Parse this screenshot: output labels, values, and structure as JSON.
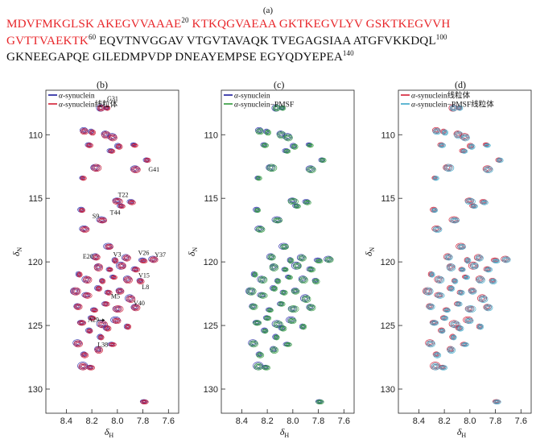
{
  "figure_label_a": "(a)",
  "sequence": {
    "lines": [
      [
        {
          "text": "MDVFMKGLSK AKEGVVAAAE",
          "color": "red"
        },
        {
          "text": "20",
          "sup": true,
          "color": "black"
        },
        {
          "text": " KTKQGVAEAA GKTKEGVLYV GSKTKEGVVH",
          "color": "red"
        }
      ],
      [
        {
          "text": "GVTTVAEKTK",
          "color": "red"
        },
        {
          "text": "60",
          "sup": true,
          "color": "black"
        },
        {
          "text": " EQVTNVGGAV VTGVTAVAQK TVEGAGSIAA ATGFVKKDQL",
          "color": "black"
        },
        {
          "text": "100",
          "sup": true,
          "color": "black"
        }
      ],
      [
        {
          "text": "GKNEEGAPQE GILEDMPVDP DNEAYEMPSE EGYQDYEPEA",
          "color": "black"
        },
        {
          "text": "140",
          "sup": true,
          "color": "black"
        }
      ]
    ]
  },
  "panels": [
    {
      "label": "(b)",
      "legend": [
        {
          "prefix": "α",
          "text": "-synuclein",
          "color": "#1c1c9c"
        },
        {
          "prefix": "α",
          "text": "-synuclein线粒体",
          "color": "#d41e33"
        }
      ],
      "annotations": [
        "G31",
        "G41",
        "T22",
        "S9",
        "T44",
        "E20",
        "V3",
        "V26",
        "Y37",
        "V15",
        "L8",
        "M5",
        "V40",
        "A29",
        "L38"
      ],
      "ylabel": "δN",
      "xlabel": "δH"
    },
    {
      "label": "(c)",
      "legend": [
        {
          "prefix": "α",
          "text": "-synuclein",
          "color": "#1c1c9c"
        },
        {
          "prefix": "α",
          "text": "-synuclein−PMSF",
          "color": "#2e9a3a"
        }
      ],
      "annotations": [],
      "ylabel": "δN",
      "xlabel": "δH"
    },
    {
      "label": "(d)",
      "legend": [
        {
          "prefix": "α",
          "text": "-synuclein线粒体",
          "color": "#d41e33"
        },
        {
          "prefix": "α",
          "text": "-synuclein−PMSF线粒体",
          "color": "#3aa6c8"
        }
      ],
      "annotations": [],
      "ylabel": "δN",
      "xlabel": "δH"
    }
  ],
  "chart_data": {
    "type": "scatter",
    "subtype": "2D 1H-15N HSQC contour overlay",
    "x_ticks": [
      8.4,
      8.2,
      8.0,
      7.8,
      7.6
    ],
    "y_ticks": [
      110,
      115,
      120,
      125,
      130
    ],
    "xlim": [
      8.56,
      7.52
    ],
    "ylim": [
      106.5,
      131.9
    ],
    "x_reversed": true,
    "y_reversed": true,
    "peaks": [
      {
        "x": 8.08,
        "y": 107.9
      },
      {
        "x": 8.13,
        "y": 107.9
      },
      {
        "x": 8.26,
        "y": 109.7
      },
      {
        "x": 8.2,
        "y": 109.8
      },
      {
        "x": 8.22,
        "y": 110.8
      },
      {
        "x": 8.09,
        "y": 110.0
      },
      {
        "x": 8.04,
        "y": 110.2
      },
      {
        "x": 8.05,
        "y": 111.3
      },
      {
        "x": 7.99,
        "y": 110.9
      },
      {
        "x": 7.87,
        "y": 110.8
      },
      {
        "x": 7.77,
        "y": 112.0
      },
      {
        "x": 7.86,
        "y": 112.7
      },
      {
        "x": 8.17,
        "y": 112.6
      },
      {
        "x": 8.27,
        "y": 113.4
      },
      {
        "x": 8.0,
        "y": 115.2
      },
      {
        "x": 7.97,
        "y": 115.6
      },
      {
        "x": 7.89,
        "y": 115.3
      },
      {
        "x": 8.28,
        "y": 115.9
      },
      {
        "x": 8.12,
        "y": 116.7
      },
      {
        "x": 8.26,
        "y": 117.4
      },
      {
        "x": 8.07,
        "y": 118.8
      },
      {
        "x": 8.17,
        "y": 119.6
      },
      {
        "x": 8.02,
        "y": 119.9
      },
      {
        "x": 7.93,
        "y": 119.7
      },
      {
        "x": 7.72,
        "y": 119.8
      },
      {
        "x": 7.8,
        "y": 119.9
      },
      {
        "x": 8.15,
        "y": 120.4
      },
      {
        "x": 8.06,
        "y": 120.6
      },
      {
        "x": 7.97,
        "y": 120.3
      },
      {
        "x": 7.86,
        "y": 120.6
      },
      {
        "x": 8.3,
        "y": 121.0
      },
      {
        "x": 8.24,
        "y": 121.4
      },
      {
        "x": 8.12,
        "y": 121.5
      },
      {
        "x": 8.03,
        "y": 121.2
      },
      {
        "x": 7.92,
        "y": 121.4
      },
      {
        "x": 7.82,
        "y": 121.5
      },
      {
        "x": 8.33,
        "y": 122.3
      },
      {
        "x": 8.24,
        "y": 122.6
      },
      {
        "x": 8.15,
        "y": 122.1
      },
      {
        "x": 8.07,
        "y": 122.4
      },
      {
        "x": 7.98,
        "y": 122.3
      },
      {
        "x": 7.9,
        "y": 122.9
      },
      {
        "x": 8.31,
        "y": 123.5
      },
      {
        "x": 8.18,
        "y": 123.8
      },
      {
        "x": 8.09,
        "y": 123.3
      },
      {
        "x": 8.0,
        "y": 123.7
      },
      {
        "x": 7.86,
        "y": 123.6
      },
      {
        "x": 8.28,
        "y": 124.8
      },
      {
        "x": 8.2,
        "y": 124.4
      },
      {
        "x": 8.12,
        "y": 124.9
      },
      {
        "x": 8.01,
        "y": 124.6
      },
      {
        "x": 8.22,
        "y": 125.4
      },
      {
        "x": 8.08,
        "y": 125.2
      },
      {
        "x": 7.92,
        "y": 125.1
      },
      {
        "x": 8.13,
        "y": 125.9
      },
      {
        "x": 8.31,
        "y": 126.4
      },
      {
        "x": 8.04,
        "y": 126.5
      },
      {
        "x": 8.26,
        "y": 127.3
      },
      {
        "x": 8.15,
        "y": 126.9
      },
      {
        "x": 8.27,
        "y": 128.2
      },
      {
        "x": 8.21,
        "y": 128.3
      },
      {
        "x": 7.79,
        "y": 131.0
      }
    ],
    "labeled_peaks": [
      {
        "label": "G31",
        "x": 8.08,
        "y": 107.9
      },
      {
        "label": "G41",
        "x": 7.77,
        "y": 112.0
      },
      {
        "label": "T22",
        "x": 7.97,
        "y": 115.6
      },
      {
        "label": "S9",
        "x": 8.12,
        "y": 116.7
      },
      {
        "label": "T44",
        "x": 7.97,
        "y": 115.6
      },
      {
        "label": "E20",
        "x": 8.17,
        "y": 119.6
      },
      {
        "label": "V3",
        "x": 8.02,
        "y": 119.9
      },
      {
        "label": "V26",
        "x": 7.8,
        "y": 119.9
      },
      {
        "label": "Y37",
        "x": 7.72,
        "y": 119.8
      },
      {
        "label": "V15",
        "x": 7.86,
        "y": 120.6
      },
      {
        "label": "L8",
        "x": 7.82,
        "y": 121.5
      },
      {
        "label": "M5",
        "x": 8.0,
        "y": 122.3
      },
      {
        "label": "V40",
        "x": 7.86,
        "y": 123.6
      },
      {
        "label": "A29",
        "x": 8.08,
        "y": 124.7
      },
      {
        "label": "L38",
        "x": 8.13,
        "y": 125.9
      }
    ],
    "series_styles": [
      {
        "panel": "(b)",
        "colors": [
          "#2a2aa8",
          "#cc1530"
        ]
      },
      {
        "panel": "(c)",
        "colors": [
          "#2a2aa8",
          "#2e9a3a"
        ]
      },
      {
        "panel": "(d)",
        "colors": [
          "#cc1530",
          "#3aa6c8"
        ]
      }
    ]
  }
}
